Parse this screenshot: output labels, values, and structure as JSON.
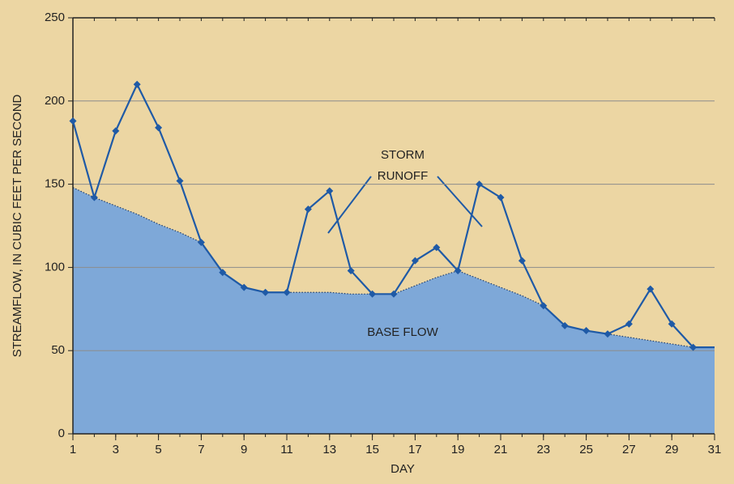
{
  "chart_data": {
    "type": "line",
    "x": [
      1,
      2,
      3,
      4,
      5,
      6,
      7,
      8,
      9,
      10,
      11,
      12,
      13,
      14,
      15,
      16,
      17,
      18,
      19,
      20,
      21,
      22,
      23,
      24,
      25,
      26,
      27,
      28,
      29,
      30,
      31
    ],
    "series": [
      {
        "name": "STORM RUNOFF",
        "color": "#1f5aa6",
        "values": [
          188,
          142,
          182,
          210,
          184,
          152,
          115,
          97,
          88,
          85,
          85,
          135,
          146,
          98,
          84,
          84,
          104,
          112,
          98,
          150,
          142,
          104,
          77,
          65,
          62,
          60,
          66,
          87,
          66,
          52,
          52
        ]
      },
      {
        "name": "BASE FLOW",
        "color": "#7ea8d8",
        "values": [
          148,
          142,
          137,
          132,
          126,
          121,
          115,
          97,
          88,
          85,
          85,
          85,
          85,
          84,
          84,
          84,
          89,
          94,
          98,
          93,
          88,
          83,
          77,
          65,
          62,
          60,
          58,
          56,
          54,
          52,
          52
        ]
      }
    ],
    "annotations": [
      "STORM",
      "RUNOFF"
    ],
    "xlabel": "DAY",
    "ylabel": "STREAMFLOW, IN CUBIC FEET PER SECOND",
    "xlim": [
      1,
      31
    ],
    "xticks": [
      1,
      3,
      5,
      7,
      9,
      11,
      13,
      15,
      17,
      19,
      21,
      23,
      25,
      27,
      29,
      31
    ],
    "ylim": [
      0,
      250
    ],
    "yticks": [
      0,
      50,
      100,
      150,
      200,
      250
    ],
    "grid": true
  }
}
